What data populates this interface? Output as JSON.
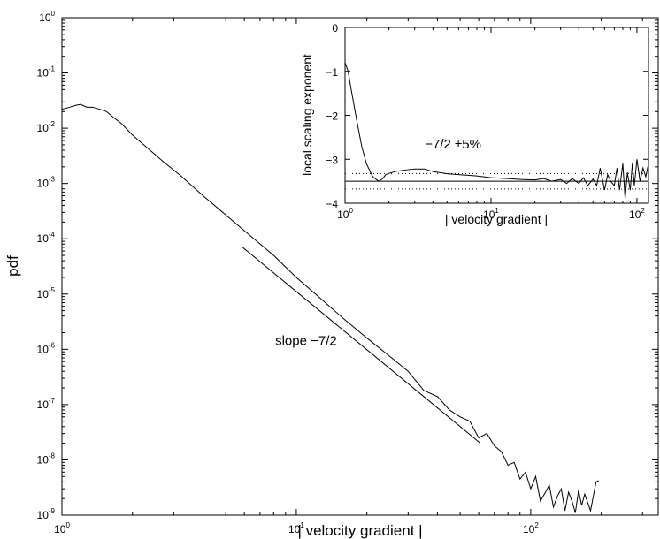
{
  "chart_data": [
    {
      "type": "line",
      "xlabel": "| velocity gradient |",
      "ylabel": "pdf",
      "xscale": "log",
      "yscale": "log",
      "xlim": [
        1,
        350
      ],
      "ylim": [
        1e-09,
        1
      ],
      "xticks": [
        {
          "base": "10",
          "exp": "0",
          "value": 1
        },
        {
          "base": "10",
          "exp": "1",
          "value": 10
        },
        {
          "base": "10",
          "exp": "2",
          "value": 100
        }
      ],
      "yticks": [
        {
          "base": "10",
          "exp": "0",
          "value": 1
        },
        {
          "base": "10",
          "exp": "-1",
          "value": 0.1
        },
        {
          "base": "10",
          "exp": "-2",
          "value": 0.01
        },
        {
          "base": "10",
          "exp": "-3",
          "value": 0.001
        },
        {
          "base": "10",
          "exp": "-4",
          "value": 0.0001
        },
        {
          "base": "10",
          "exp": "-5",
          "value": 1e-05
        },
        {
          "base": "10",
          "exp": "-6",
          "value": 1e-06
        },
        {
          "base": "10",
          "exp": "-7",
          "value": 1e-07
        },
        {
          "base": "10",
          "exp": "-8",
          "value": 1e-08
        },
        {
          "base": "10",
          "exp": "-9",
          "value": 1e-09
        }
      ],
      "series": [
        {
          "role": "pdf",
          "color": "#000000",
          "x": [
            1.0,
            1.08,
            1.15,
            1.2,
            1.28,
            1.35,
            1.45,
            1.55,
            1.65,
            1.8,
            2.0,
            2.3,
            2.7,
            3.2,
            4,
            5,
            6,
            8,
            10,
            13,
            16,
            20,
            25,
            30,
            35,
            40,
            45,
            50,
            55,
            60,
            65,
            70,
            75,
            80,
            85,
            90,
            95,
            100,
            105,
            110,
            115,
            120,
            125,
            130,
            135,
            140,
            145,
            150,
            155,
            160,
            165,
            170,
            180,
            190,
            195
          ],
          "y": [
            0.022,
            0.024,
            0.026,
            0.027,
            0.024,
            0.024,
            0.022,
            0.02,
            0.016,
            0.012,
            0.0075,
            0.0045,
            0.0025,
            0.0014,
            0.0006,
            0.00027,
            0.00014,
            5e-05,
            2e-05,
            7.6e-06,
            3.5e-06,
            1.6e-06,
            7.5e-07,
            4e-07,
            1.8e-07,
            1.4e-07,
            8e-08,
            6e-08,
            5e-08,
            2.5e-08,
            3e-08,
            1.8e-08,
            1.4e-08,
            8e-09,
            9e-09,
            4.5e-09,
            6e-09,
            3e-09,
            5e-09,
            1.8e-09,
            2.5e-09,
            3.5e-09,
            1.4e-09,
            2.2e-09,
            3e-09,
            1.2e-09,
            2.6e-09,
            1.8e-09,
            1.1e-09,
            2.8e-09,
            1.5e-09,
            2.4e-09,
            1.2e-09,
            4e-09,
            4.2e-09
          ]
        },
        {
          "role": "reference-slope",
          "color": "#000000",
          "x": [
            5.9,
            61
          ],
          "y": [
            7e-05,
            2e-08
          ]
        }
      ],
      "annotations": [
        {
          "text": "slope −7/2",
          "x": 11,
          "y": 1.2e-06
        }
      ],
      "inset": {
        "type": "line",
        "xlabel": "| velocity gradient |",
        "ylabel": "local scaling exponent",
        "xscale": "log",
        "xlim": [
          1,
          120
        ],
        "ylim": [
          -4,
          0
        ],
        "xticks": [
          {
            "base": "10",
            "exp": "0",
            "value": 1
          },
          {
            "base": "10",
            "exp": "1",
            "value": 10
          },
          {
            "base": "10",
            "exp": "2",
            "value": 100
          }
        ],
        "yticks": [
          {
            "label": "0",
            "value": 0
          },
          {
            "label": "−1",
            "value": -1
          },
          {
            "label": "−2",
            "value": -2
          },
          {
            "label": "−3",
            "value": -3
          },
          {
            "label": "−4",
            "value": -4
          }
        ],
        "reference_lines": [
          {
            "y": -3.5,
            "style": "solid"
          },
          {
            "y": -3.325,
            "style": "dotted"
          },
          {
            "y": -3.675,
            "style": "dotted"
          }
        ],
        "series": [
          {
            "color": "#000000",
            "x": [
              1.0,
              1.05,
              1.1,
              1.2,
              1.3,
              1.4,
              1.55,
              1.7,
              1.8,
              1.9,
              2.0,
              2.2,
              2.5,
              3.0,
              3.5,
              4.0,
              5.0,
              6.0,
              8.0,
              10,
              13,
              16,
              20,
              23,
              26,
              30,
              33,
              36,
              40,
              43,
              46,
              50,
              53,
              56,
              60,
              63,
              66,
              70,
              73,
              76,
              80,
              83,
              86,
              90,
              93,
              96,
              100,
              105,
              110,
              115,
              120
            ],
            "y": [
              -0.8,
              -1.0,
              -1.4,
              -2.1,
              -2.7,
              -3.1,
              -3.4,
              -3.5,
              -3.45,
              -3.35,
              -3.32,
              -3.28,
              -3.25,
              -3.22,
              -3.22,
              -3.28,
              -3.33,
              -3.35,
              -3.38,
              -3.42,
              -3.44,
              -3.46,
              -3.47,
              -3.44,
              -3.5,
              -3.46,
              -3.55,
              -3.44,
              -3.55,
              -3.42,
              -3.6,
              -3.45,
              -3.6,
              -3.2,
              -3.7,
              -3.35,
              -3.5,
              -3.6,
              -3.2,
              -3.7,
              -3.1,
              -3.9,
              -3.3,
              -3.7,
              -3.1,
              -3.6,
              -3.0,
              -3.5,
              -3.2,
              -3.4,
              -3.1
            ]
          }
        ],
        "annotations": [
          {
            "text": "−7/2 ±5%",
            "x": 5.5,
            "y": -2.75
          }
        ]
      }
    }
  ]
}
